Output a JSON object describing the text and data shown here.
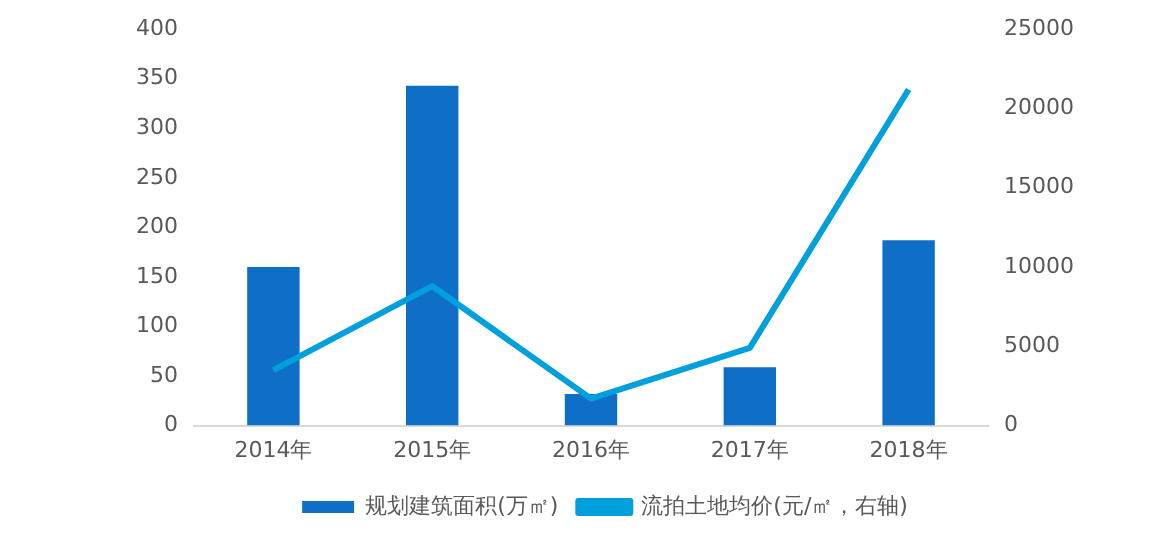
{
  "chart_data": {
    "type": "bar",
    "categories": [
      "2014年",
      "2015年",
      "2016年",
      "2017年",
      "2018年"
    ],
    "series": [
      {
        "name": "规划建筑面积(万㎡)",
        "color": "#0f6fc6",
        "values": [
          160,
          343,
          32,
          59,
          187
        ]
      },
      {
        "name": "流拍土地均价(元/㎡，右轴)",
        "type": "line",
        "axis": "y2",
        "color": "#00a0dc",
        "values": [
          3500,
          8800,
          1700,
          4900,
          21200
        ]
      }
    ],
    "ylim": [
      0,
      400
    ],
    "yticks": [
      0,
      50,
      100,
      150,
      200,
      250,
      300,
      350,
      400
    ],
    "y2lim": [
      0,
      25000
    ],
    "y2ticks": [
      0,
      5000,
      10000,
      15000,
      20000,
      25000
    ],
    "grid": false,
    "legend": "bottom",
    "marker": "none"
  }
}
